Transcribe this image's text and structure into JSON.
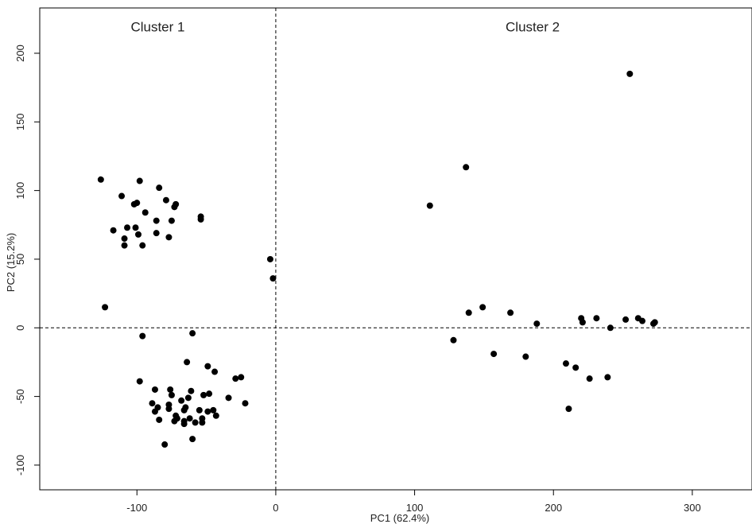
{
  "chart_data": {
    "type": "scatter",
    "title": "",
    "xlabel": "PC1 (62.4%)",
    "ylabel": "PC2 (15.2%)",
    "xlim": [
      -170,
      343
    ],
    "ylim": [
      -118,
      233
    ],
    "xticks": [
      -100,
      0,
      100,
      200,
      300
    ],
    "yticks": [
      -100,
      -50,
      0,
      50,
      100,
      150,
      200
    ],
    "reference_lines": {
      "x": 0,
      "y": 0,
      "style": "dashed"
    },
    "annotations": [
      {
        "text": "Cluster 1",
        "x": -85,
        "y": 216
      },
      {
        "text": "Cluster 2",
        "x": 185,
        "y": 216
      }
    ],
    "series": [
      {
        "marker_color": "#000000",
        "points": [
          [
            -126,
            108
          ],
          [
            -98,
            107
          ],
          [
            -84,
            102
          ],
          [
            -111,
            96
          ],
          [
            -79,
            93
          ],
          [
            -100,
            91
          ],
          [
            -102,
            90
          ],
          [
            -72,
            90
          ],
          [
            -73,
            88
          ],
          [
            -94,
            84
          ],
          [
            -54,
            81
          ],
          [
            -54,
            79
          ],
          [
            -86,
            78
          ],
          [
            -75,
            78
          ],
          [
            -117,
            71
          ],
          [
            -107,
            73
          ],
          [
            -101,
            73
          ],
          [
            -99,
            68
          ],
          [
            -86,
            69
          ],
          [
            -77,
            66
          ],
          [
            -109,
            65
          ],
          [
            -109,
            60
          ],
          [
            -96,
            60
          ],
          [
            -123,
            15
          ],
          [
            -4,
            50
          ],
          [
            -2,
            36
          ],
          [
            -96,
            -6
          ],
          [
            -60,
            -4
          ],
          [
            -64,
            -25
          ],
          [
            -49,
            -28
          ],
          [
            -44,
            -32
          ],
          [
            -29,
            -37
          ],
          [
            -25,
            -36
          ],
          [
            -98,
            -39
          ],
          [
            -76,
            -45
          ],
          [
            -87,
            -45
          ],
          [
            -61,
            -46
          ],
          [
            -52,
            -49
          ],
          [
            -48,
            -48
          ],
          [
            -34,
            -51
          ],
          [
            -63,
            -51
          ],
          [
            -75,
            -49
          ],
          [
            -22,
            -55
          ],
          [
            -89,
            -55
          ],
          [
            -77,
            -56
          ],
          [
            -68,
            -53
          ],
          [
            -85,
            -58
          ],
          [
            -65,
            -58
          ],
          [
            -77,
            -59
          ],
          [
            -45,
            -60
          ],
          [
            -55,
            -60
          ],
          [
            -49,
            -61
          ],
          [
            -87,
            -61
          ],
          [
            -66,
            -60
          ],
          [
            -72,
            -64
          ],
          [
            -43,
            -64
          ],
          [
            -71,
            -66
          ],
          [
            -62,
            -66
          ],
          [
            -53,
            -66
          ],
          [
            -66,
            -68
          ],
          [
            -84,
            -67
          ],
          [
            -73,
            -68
          ],
          [
            -58,
            -69
          ],
          [
            -53,
            -69
          ],
          [
            -66,
            -70
          ],
          [
            -60,
            -81
          ],
          [
            -80,
            -85
          ],
          [
            255,
            185
          ],
          [
            137,
            117
          ],
          [
            111,
            89
          ],
          [
            149,
            15
          ],
          [
            139,
            11
          ],
          [
            169,
            11
          ],
          [
            188,
            3
          ],
          [
            220,
            7
          ],
          [
            221,
            4
          ],
          [
            231,
            7
          ],
          [
            252,
            6
          ],
          [
            261,
            7
          ],
          [
            264,
            5
          ],
          [
            273,
            4
          ],
          [
            272,
            3
          ],
          [
            241,
            0
          ],
          [
            128,
            -9
          ],
          [
            157,
            -19
          ],
          [
            180,
            -21
          ],
          [
            209,
            -26
          ],
          [
            216,
            -29
          ],
          [
            226,
            -37
          ],
          [
            239,
            -36
          ],
          [
            211,
            -59
          ]
        ]
      }
    ]
  }
}
